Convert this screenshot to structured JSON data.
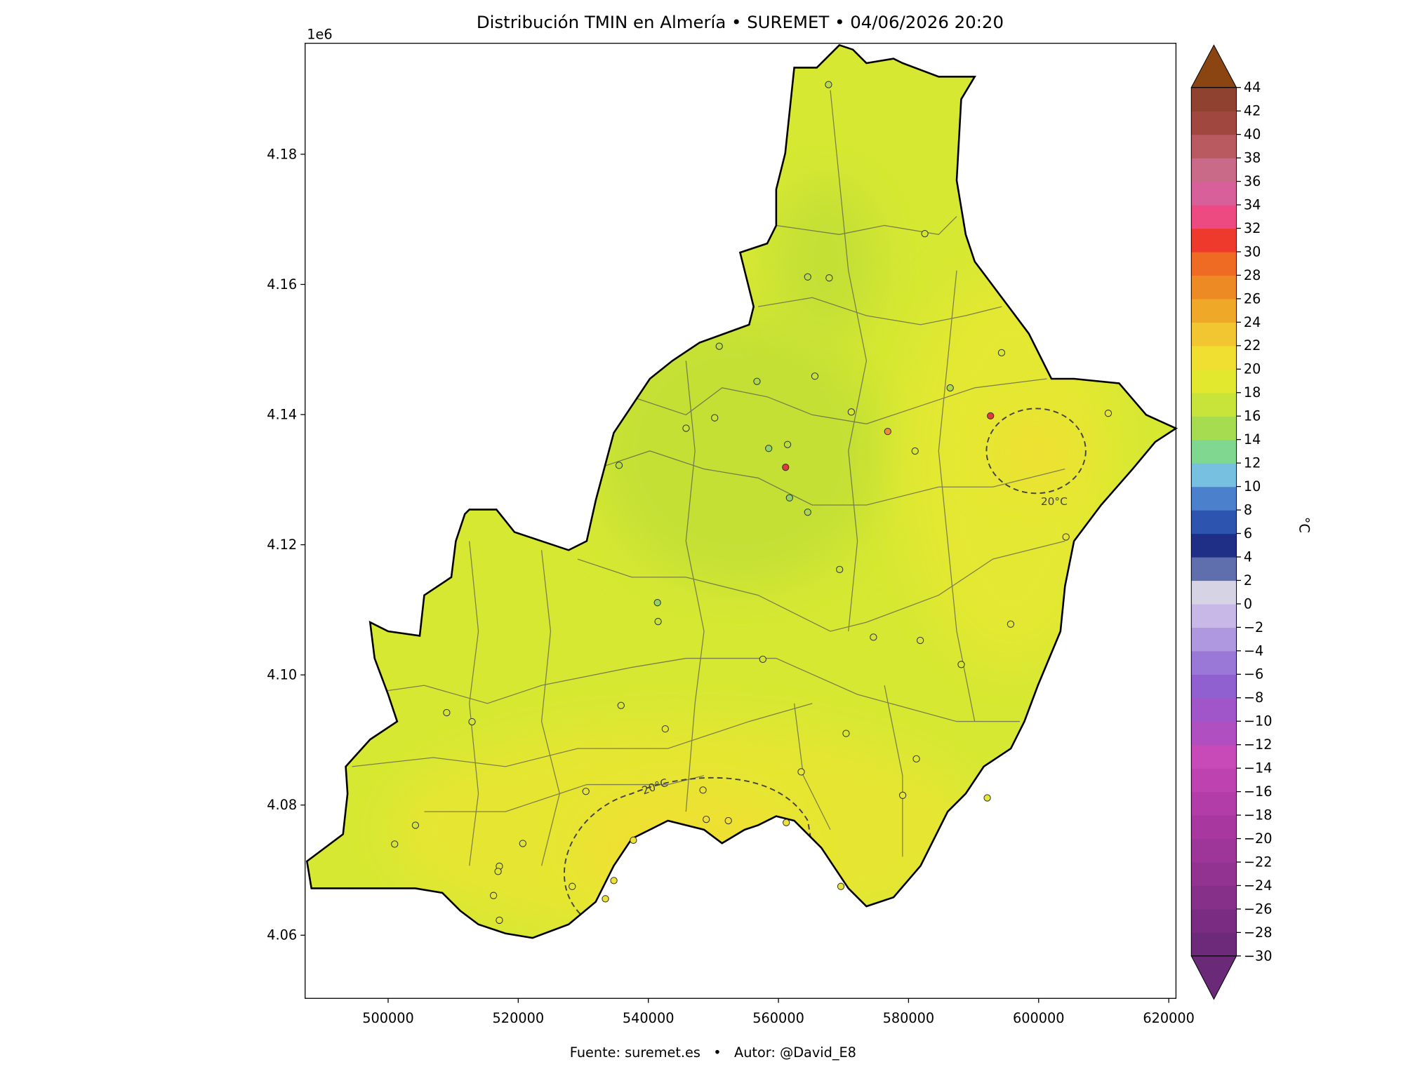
{
  "chart_data": {
    "type": "map",
    "title": "Distribución TMIN en Almería • SUREMET • 04/06/2026 20:20",
    "offset_text": "1e6",
    "footer": "Fuente: suremet.es   •   Autor: @David_E8",
    "contour_labels": [
      "20°C",
      "20°C"
    ],
    "xlim": [
      487240,
      621110
    ],
    "ylim": [
      4050300,
      4197050
    ],
    "xticks": [
      500000,
      520000,
      540000,
      560000,
      580000,
      600000,
      620000
    ],
    "yticks": [
      {
        "value": 4060000,
        "label": "4.06"
      },
      {
        "value": 4080000,
        "label": "4.08"
      },
      {
        "value": 4100000,
        "label": "4.10"
      },
      {
        "value": 4120000,
        "label": "4.12"
      },
      {
        "value": 4140000,
        "label": "4.14"
      },
      {
        "value": 4160000,
        "label": "4.16"
      },
      {
        "value": 4180000,
        "label": "4.18"
      }
    ],
    "stations": {
      "x": [
        567700,
        564500,
        567800,
        582500,
        550900,
        565600,
        556700,
        594300,
        586400,
        592600,
        610700,
        550200,
        545800,
        558500,
        561400,
        561100,
        535500,
        576800,
        571200,
        581000,
        561700,
        564500,
        569400,
        541400,
        541500,
        557600,
        574600,
        581800,
        595700,
        604200,
        588100,
        509000,
        512900,
        535800,
        542600,
        570400,
        581200,
        563500,
        579100,
        530400,
        504200,
        501000,
        520700,
        517100,
        516900,
        516200,
        517100,
        528300,
        533400,
        534700,
        537700,
        548900,
        552300,
        561200,
        548400,
        569600,
        592100
      ],
      "y": [
        4190700,
        4161150,
        4161000,
        4167800,
        4150500,
        4145900,
        4145100,
        4149500,
        4144100,
        4139800,
        4140200,
        4139500,
        4137900,
        4134800,
        4135400,
        4131900,
        4132200,
        4137400,
        4140400,
        4134400,
        4127200,
        4125000,
        4116200,
        4111100,
        4108200,
        4102400,
        4105800,
        4105300,
        4107800,
        4121200,
        4101600,
        4094200,
        4092800,
        4095300,
        4091700,
        4091000,
        4087100,
        4085100,
        4081500,
        4082100,
        4076900,
        4074000,
        4074100,
        4070600,
        4069800,
        4066100,
        4062300,
        4067500,
        4065600,
        4068400,
        4074600,
        4077800,
        4077600,
        4077300,
        4082300,
        4067500,
        4081100
      ],
      "colors": [
        "#b9df3e",
        "#b9df3e",
        "#c6e33a",
        "#cfe636",
        "#b9df3e",
        "#c6e33a",
        "#a9da4a",
        "#d8e832",
        "#a9da4a",
        "#e23a3a",
        "#e6e634",
        "#c6e33a",
        "#c6e33a",
        "#8fd36a",
        "#b9df3e",
        "#e23a3a",
        "#b9df3e",
        "#f08a3a",
        "#d2e536",
        "#d8e832",
        "#8fd36a",
        "#a9da4a",
        "#c6e33a",
        "#8fd36a",
        "#c6e33a",
        "#cfe636",
        "#d2e536",
        "#d8e832",
        "#e0e832",
        "#e8e432",
        "#d8e832",
        "#cfe636",
        "#d2e536",
        "#d8e832",
        "#e0e632",
        "#d8e832",
        "#e0e832",
        "#e6e634",
        "#e6e634",
        "#e6e634",
        "#d2e536",
        "#d2e536",
        "#e0e632",
        "#e0e632",
        "#e0e632",
        "#e6e634",
        "#e6e634",
        "#e6e634",
        "#eee234",
        "#eee234",
        "#eee234",
        "#f0e034",
        "#f0e034",
        "#eee234",
        "#eee234",
        "#e6e634",
        "#e6e634"
      ]
    },
    "colorbar": {
      "label": "°C",
      "clim": [
        -30,
        44
      ],
      "ticks": [
        {
          "value": -30,
          "label": "−30"
        },
        {
          "value": -28,
          "label": "−28"
        },
        {
          "value": -26,
          "label": "−26"
        },
        {
          "value": -24,
          "label": "−24"
        },
        {
          "value": -22,
          "label": "−22"
        },
        {
          "value": -20,
          "label": "−20"
        },
        {
          "value": -18,
          "label": "−18"
        },
        {
          "value": -16,
          "label": "−16"
        },
        {
          "value": -14,
          "label": "−14"
        },
        {
          "value": -12,
          "label": "−12"
        },
        {
          "value": -10,
          "label": "−10"
        },
        {
          "value": -8,
          "label": "−8"
        },
        {
          "value": -6,
          "label": "−6"
        },
        {
          "value": -4,
          "label": "−4"
        },
        {
          "value": -2,
          "label": "−2"
        },
        0,
        2,
        4,
        6,
        8,
        10,
        12,
        14,
        16,
        18,
        20,
        22,
        24,
        26,
        28,
        30,
        32,
        34,
        36,
        38,
        40,
        42,
        44
      ],
      "colors": [
        "#6e2a7a",
        "#7a2c82",
        "#86308a",
        "#923392",
        "#9e369a",
        "#a838a0",
        "#b23ca8",
        "#be42b0",
        "#c84ab8",
        "#b050c0",
        "#a055c8",
        "#9060d0",
        "#9a78d8",
        "#b098e0",
        "#c8b8e8",
        "#d6d4e4",
        "#5f6fae",
        "#1f2f85",
        "#2d55b0",
        "#4a80cc",
        "#78c0e0",
        "#80d890",
        "#a6dc50",
        "#c8e43a",
        "#e2e82e",
        "#f0de30",
        "#f2c630",
        "#f0a828",
        "#ee8a24",
        "#ef6a22",
        "#ee3a2c",
        "#ec4a80",
        "#d8609a",
        "#c86a88",
        "#b85a60",
        "#a04840",
        "#904230"
      ],
      "over_color": "#8b4513",
      "under_color": "#6a2a78"
    }
  }
}
